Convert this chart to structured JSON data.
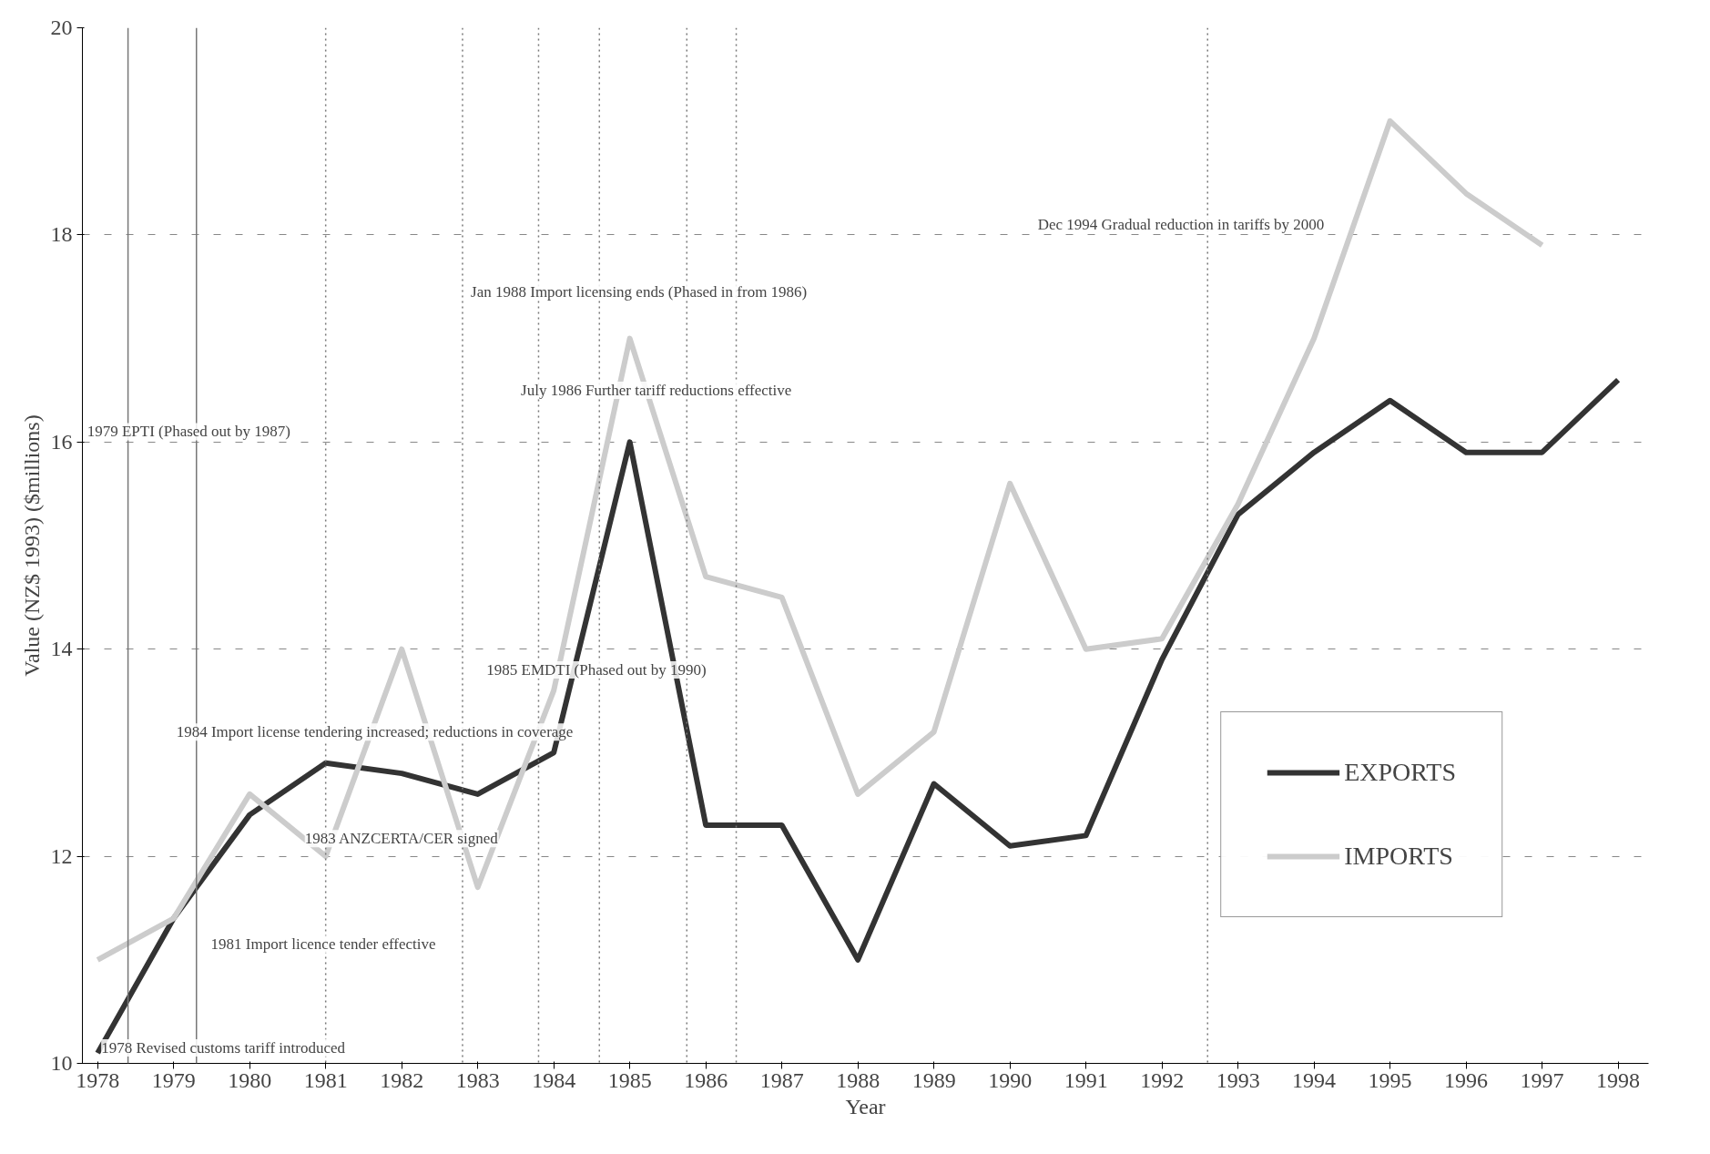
{
  "chart_data": {
    "type": "line",
    "xlabel": "Year",
    "ylabel": "Value (NZ$ 1993) ($millions)",
    "x": [
      1978,
      1979,
      1980,
      1981,
      1982,
      1983,
      1984,
      1985,
      1986,
      1987,
      1988,
      1989,
      1990,
      1991,
      1992,
      1993,
      1994,
      1995,
      1996,
      1997,
      1998
    ],
    "series": [
      {
        "name": "EXPORTS",
        "color": "#333333",
        "values": [
          10.1,
          11.4,
          12.4,
          12.9,
          12.8,
          12.6,
          13.0,
          16.0,
          12.3,
          12.3,
          11.0,
          12.7,
          12.1,
          12.2,
          13.9,
          15.3,
          15.9,
          16.4,
          15.9,
          15.9,
          16.6
        ]
      },
      {
        "name": "IMPORTS",
        "color": "#cccccc",
        "values": [
          11.0,
          11.4,
          12.6,
          12.0,
          14.0,
          11.7,
          13.6,
          17.0,
          14.7,
          14.5,
          12.6,
          13.2,
          15.6,
          14.0,
          14.1,
          15.4,
          17.0,
          19.1,
          18.4,
          17.9,
          null
        ]
      }
    ],
    "xlim": [
      1977.8,
      1998.4
    ],
    "xticks": [
      1978,
      1979,
      1980,
      1981,
      1982,
      1983,
      1984,
      1985,
      1986,
      1987,
      1988,
      1989,
      1990,
      1991,
      1992,
      1993,
      1994,
      1995,
      1996,
      1997,
      1998
    ],
    "ylim": [
      10,
      20
    ],
    "yticks": [
      10,
      12,
      14,
      16,
      18,
      20
    ],
    "grid": "y",
    "legend": "bottom right",
    "line_style": "solid",
    "marker": "none",
    "ref_lines": [
      {
        "axis": "x",
        "value": 1978.4,
        "label": null,
        "color": "#777777",
        "line_style": "solid"
      },
      {
        "axis": "x",
        "value": 1979.3,
        "label": null,
        "color": "#777777",
        "line_style": "solid"
      },
      {
        "axis": "x",
        "value": 1981.0,
        "label": null,
        "color": "#777777",
        "line_style": "dotted"
      },
      {
        "axis": "x",
        "value": 1982.8,
        "label": null,
        "color": "#777777",
        "line_style": "dotted"
      },
      {
        "axis": "x",
        "value": 1983.8,
        "label": null,
        "color": "#777777",
        "line_style": "dotted"
      },
      {
        "axis": "x",
        "value": 1984.6,
        "label": null,
        "color": "#777777",
        "line_style": "dotted"
      },
      {
        "axis": "x",
        "value": 1985.75,
        "label": null,
        "color": "#777777",
        "line_style": "dotted"
      },
      {
        "axis": "x",
        "value": 1986.4,
        "label": null,
        "color": "#777777",
        "line_style": "dotted"
      },
      {
        "axis": "x",
        "value": 1992.6,
        "label": null,
        "color": "#777777",
        "line_style": "dotted"
      }
    ],
    "annotations": [
      "1978 Revised customs tariff introduced",
      "1979 EPTI (Phased out by 1987)",
      "1981 Import licence tender effective",
      "1983 ANZCERTA/CER signed",
      "1984 Import license tendering increased; reductions in coverage",
      "1985 EMDTI (Phased out by 1990)",
      "July 1986 Further tariff reductions effective",
      "Jan 1988 Import licensing ends (Phased in from 1986)",
      "Dec 1994 Gradual reduction in tariffs by 2000"
    ]
  }
}
